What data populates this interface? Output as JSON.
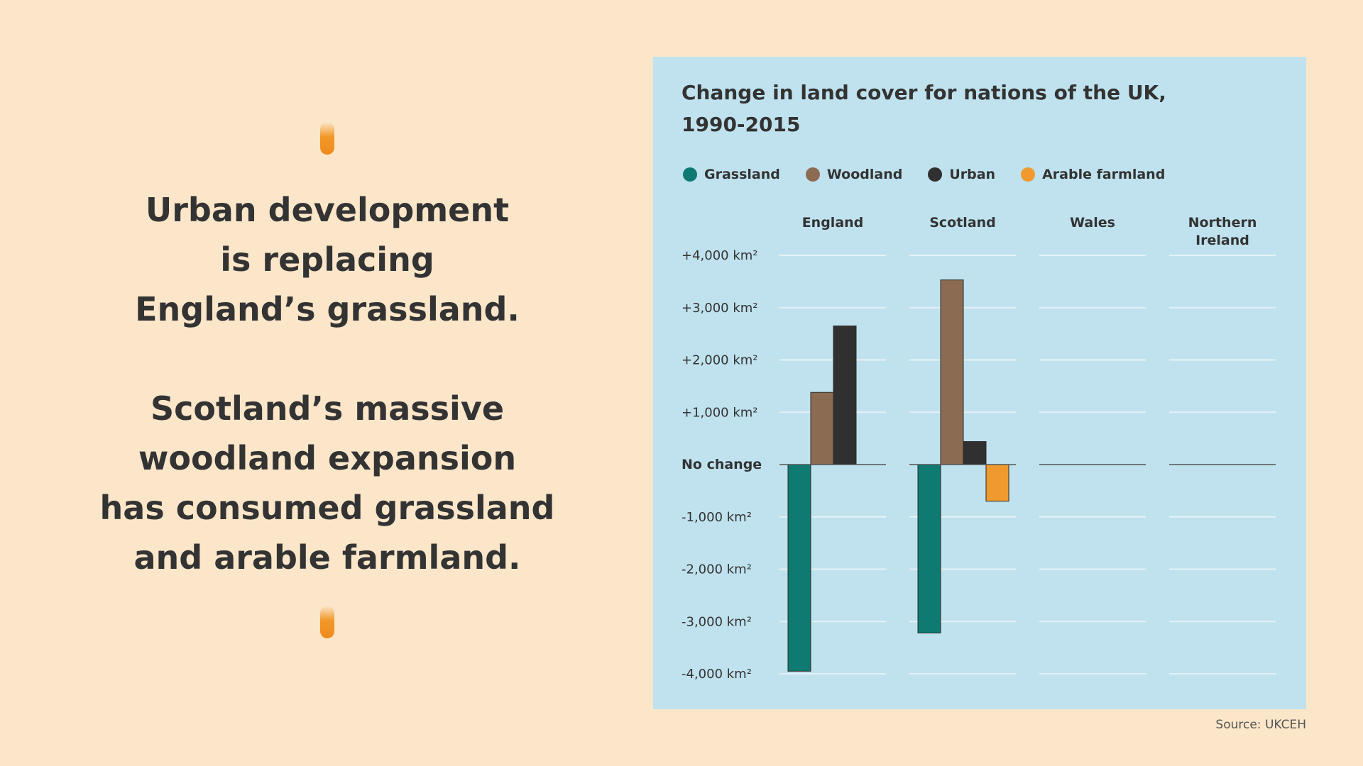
{
  "headline": {
    "lines_1": [
      "Urban development",
      "is replacing",
      "England’s grassland."
    ],
    "lines_2": [
      "Scotland’s massive",
      "woodland expansion",
      "has consumed grassland",
      "and arable farmland."
    ]
  },
  "source": "Source: UKCEH",
  "colors": {
    "background": "#fbe6c9",
    "panel": "#bfe2ee",
    "accent": "#f2982a",
    "grassland": "#0e7a72",
    "woodland": "#8b6b52",
    "urban": "#303030",
    "arable": "#f0992f"
  },
  "chart_data": {
    "type": "bar",
    "title_lines": [
      "Change in land cover for nations of the UK,",
      "1990-2015"
    ],
    "legend_position": "top",
    "categories": [
      {
        "name": "England",
        "lines": [
          "England"
        ]
      },
      {
        "name": "Scotland",
        "lines": [
          "Scotland"
        ]
      },
      {
        "name": "Wales",
        "lines": [
          "Wales"
        ]
      },
      {
        "name": "Northern Ireland",
        "lines": [
          "Northern",
          "Ireland"
        ]
      }
    ],
    "series": [
      {
        "name": "Grassland",
        "color": "#0e7a72",
        "values": [
          -3950,
          -3220,
          0,
          0
        ]
      },
      {
        "name": "Woodland",
        "color": "#8b6b52",
        "values": [
          1380,
          3530,
          0,
          0
        ]
      },
      {
        "name": "Urban",
        "color": "#303030",
        "values": [
          2650,
          440,
          0,
          0
        ]
      },
      {
        "name": "Arable farmland",
        "color": "#f0992f",
        "values": [
          0,
          -700,
          0,
          0
        ]
      }
    ],
    "ylim": [
      -4000,
      4000
    ],
    "y_ticks": [
      {
        "value": 4000,
        "label": "+4,000 km²"
      },
      {
        "value": 3000,
        "label": "+3,000 km²"
      },
      {
        "value": 2000,
        "label": "+2,000 km²"
      },
      {
        "value": 1000,
        "label": "+1,000 km²"
      },
      {
        "value": 0,
        "label": "No change"
      },
      {
        "value": -1000,
        "label": "-1,000 km²"
      },
      {
        "value": -2000,
        "label": "-2,000 km²"
      },
      {
        "value": -3000,
        "label": "-3,000 km²"
      },
      {
        "value": -4000,
        "label": "-4,000 km²"
      }
    ],
    "grid": true
  }
}
